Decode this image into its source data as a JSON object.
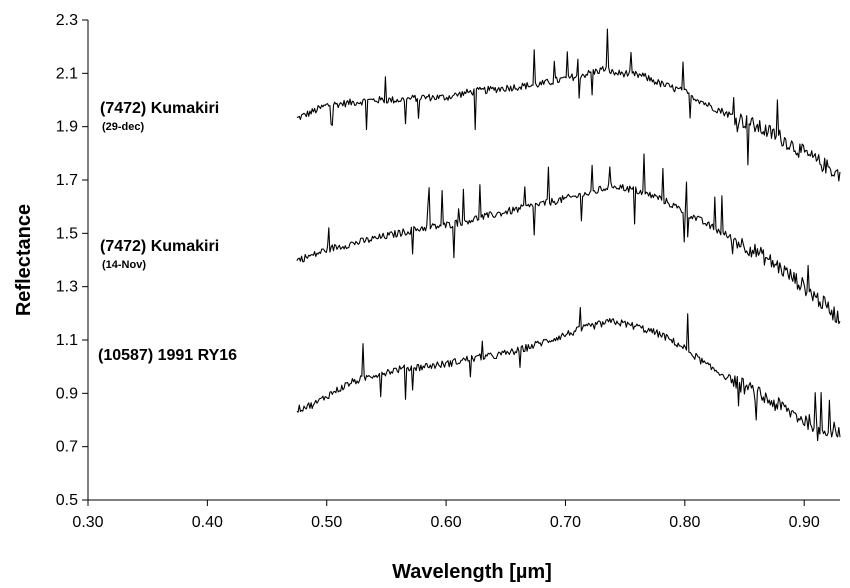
{
  "chart_data": {
    "type": "line",
    "title": "",
    "xlabel": "Wavelength [µm]",
    "ylabel": "Reflectance",
    "xlim": [
      0.3,
      0.93
    ],
    "ylim": [
      0.5,
      2.3
    ],
    "xticks": [
      "0.30",
      "0.40",
      "0.50",
      "0.60",
      "0.70",
      "0.80",
      "0.90"
    ],
    "yticks": [
      "0.5",
      "0.7",
      "0.9",
      "1.1",
      "1.3",
      "1.5",
      "1.7",
      "1.9",
      "2.1",
      "2.3"
    ],
    "grid": false,
    "legend": "none",
    "line_color": "#000000",
    "series": [
      {
        "label": "(7472) Kumakiri",
        "sublabel": "(29-dec)",
        "x": [
          0.475,
          0.49,
          0.5,
          0.52,
          0.54,
          0.56,
          0.58,
          0.6,
          0.62,
          0.64,
          0.66,
          0.68,
          0.7,
          0.72,
          0.735,
          0.74,
          0.75,
          0.765,
          0.78,
          0.8,
          0.82,
          0.84,
          0.86,
          0.88,
          0.9,
          0.915,
          0.93
        ],
        "y": [
          1.93,
          1.96,
          1.98,
          1.99,
          2.0,
          2.0,
          2.01,
          2.01,
          2.03,
          2.04,
          2.05,
          2.06,
          2.08,
          2.1,
          2.12,
          2.1,
          2.1,
          2.09,
          2.06,
          2.03,
          1.98,
          1.94,
          1.9,
          1.86,
          1.8,
          1.76,
          1.72
        ]
      },
      {
        "label": "(7472) Kumakiri",
        "sublabel": "(14-Nov)",
        "x": [
          0.475,
          0.49,
          0.5,
          0.52,
          0.54,
          0.56,
          0.58,
          0.6,
          0.62,
          0.64,
          0.66,
          0.68,
          0.7,
          0.72,
          0.74,
          0.75,
          0.76,
          0.78,
          0.8,
          0.82,
          0.84,
          0.86,
          0.88,
          0.9,
          0.915,
          0.93
        ],
        "y": [
          1.4,
          1.42,
          1.44,
          1.46,
          1.48,
          1.5,
          1.52,
          1.53,
          1.55,
          1.57,
          1.59,
          1.61,
          1.63,
          1.65,
          1.68,
          1.67,
          1.66,
          1.63,
          1.58,
          1.53,
          1.48,
          1.43,
          1.37,
          1.3,
          1.24,
          1.18
        ]
      },
      {
        "label": "(10587) 1991 RY16",
        "sublabel": "",
        "x": [
          0.475,
          0.49,
          0.5,
          0.52,
          0.54,
          0.56,
          0.58,
          0.6,
          0.62,
          0.64,
          0.66,
          0.68,
          0.7,
          0.72,
          0.74,
          0.75,
          0.76,
          0.78,
          0.8,
          0.82,
          0.84,
          0.86,
          0.88,
          0.9,
          0.915,
          0.93
        ],
        "y": [
          0.84,
          0.86,
          0.89,
          0.94,
          0.97,
          0.99,
          1.0,
          1.01,
          1.03,
          1.04,
          1.06,
          1.09,
          1.12,
          1.15,
          1.17,
          1.16,
          1.15,
          1.12,
          1.07,
          1.0,
          0.95,
          0.9,
          0.85,
          0.8,
          0.77,
          0.76
        ]
      }
    ]
  }
}
